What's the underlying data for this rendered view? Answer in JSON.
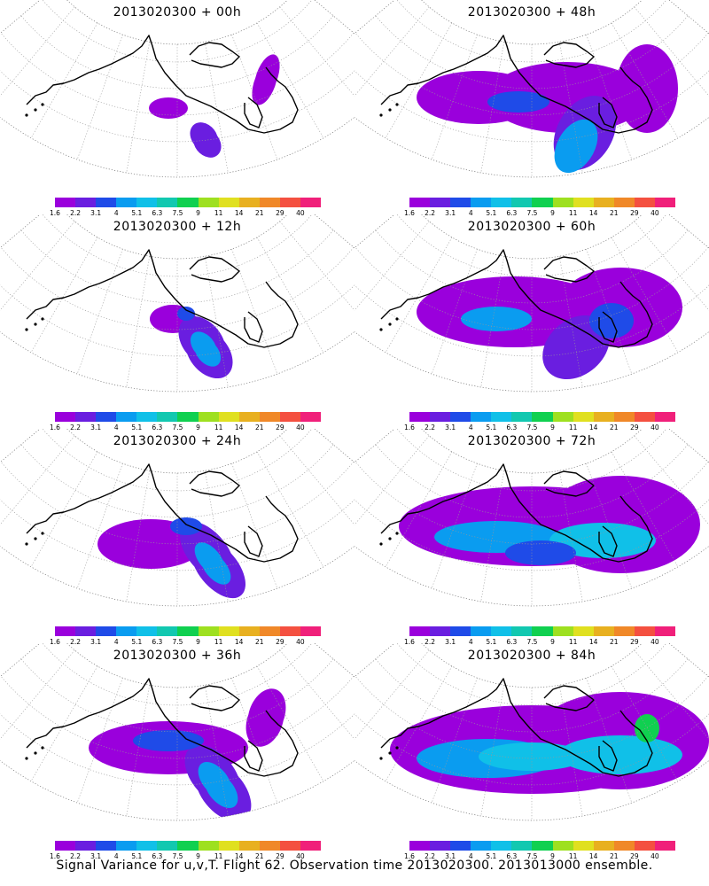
{
  "panels": [
    {
      "title": "2013020300 + 00h",
      "lead": 0
    },
    {
      "title": "2013020300 + 48h",
      "lead": 48
    },
    {
      "title": "2013020300 + 12h",
      "lead": 12
    },
    {
      "title": "2013020300 + 60h",
      "lead": 60
    },
    {
      "title": "2013020300 + 24h",
      "lead": 24
    },
    {
      "title": "2013020300 + 72h",
      "lead": 72
    },
    {
      "title": "2013020300 + 36h",
      "lead": 36
    },
    {
      "title": "2013020300 + 84h",
      "lead": 84
    }
  ],
  "colorbar": {
    "colors": [
      "#9a00dc",
      "#6a1ee0",
      "#1f4be8",
      "#0a9cf0",
      "#10c0e8",
      "#12c8b0",
      "#10d050",
      "#9ee020",
      "#e0e020",
      "#e8b020",
      "#f08828",
      "#f45040",
      "#f0207a"
    ],
    "labels": [
      "1.6",
      "2.2",
      "3.1",
      "4",
      "5.1",
      "6.3",
      "7.5",
      "9",
      "11",
      "14",
      "21",
      "29",
      "40"
    ]
  },
  "footer": "Signal Variance for u,v,T. Flight 62. Observation time 2013020300. 2013013000 ensemble."
}
